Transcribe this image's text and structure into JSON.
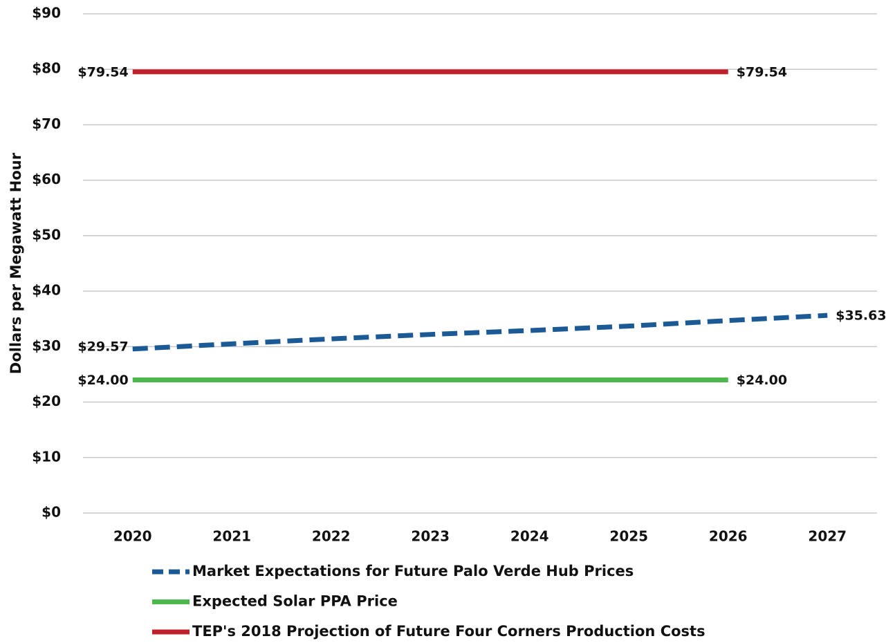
{
  "chart_data": {
    "type": "line",
    "ylabel": "Dollars per Megawatt Hour",
    "categories": [
      "2020",
      "2021",
      "2022",
      "2023",
      "2024",
      "2025",
      "2026",
      "2027"
    ],
    "series": [
      {
        "name": "Market Expectations for Future Palo Verde Hub Prices",
        "color": "#1c5a96",
        "dashed": true,
        "values": [
          29.57,
          30.5,
          31.4,
          32.2,
          32.9,
          33.7,
          34.7,
          35.63
        ],
        "value_labels": [
          "$29.57",
          null,
          null,
          null,
          null,
          null,
          null,
          "$35.63"
        ]
      },
      {
        "name": "Expected Solar PPA Price",
        "color": "#4cb84c",
        "dashed": false,
        "values": [
          24.0,
          24.0,
          24.0,
          24.0,
          24.0,
          24.0,
          24.0,
          null
        ],
        "value_labels": [
          "$24.00",
          null,
          null,
          null,
          null,
          null,
          "$24.00",
          null
        ]
      },
      {
        "name": "TEP's 2018 Projection of Future Four Corners Production Costs",
        "color": "#c0202a",
        "dashed": false,
        "values": [
          79.54,
          79.54,
          79.54,
          79.54,
          79.54,
          79.54,
          79.54,
          null
        ],
        "value_labels": [
          "$79.54",
          null,
          null,
          null,
          null,
          null,
          "$79.54",
          null
        ]
      }
    ],
    "ylim": [
      0,
      90
    ],
    "yticks": [
      {
        "value": 0,
        "label": "$0"
      },
      {
        "value": 10,
        "label": "$10"
      },
      {
        "value": 20,
        "label": "$20"
      },
      {
        "value": 30,
        "label": "$30"
      },
      {
        "value": 40,
        "label": "$40"
      },
      {
        "value": 50,
        "label": "$50"
      },
      {
        "value": 60,
        "label": "$60"
      },
      {
        "value": 70,
        "label": "$70"
      },
      {
        "value": 80,
        "label": "$80"
      },
      {
        "value": 90,
        "label": "$90"
      }
    ],
    "grid": true
  }
}
